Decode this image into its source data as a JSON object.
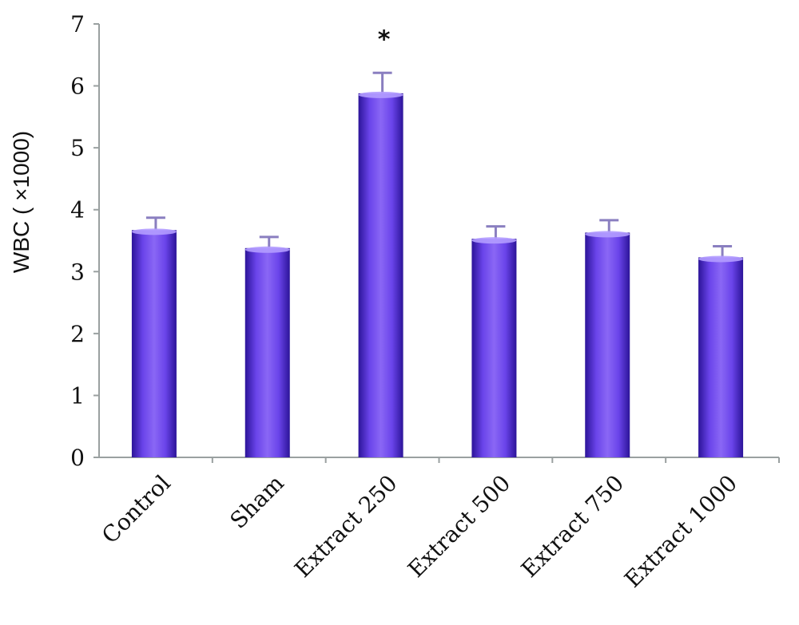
{
  "chart_data": {
    "type": "bar",
    "title": "",
    "xlabel": "",
    "ylabel": "WBC ( ×1000)",
    "ylim": [
      0,
      7
    ],
    "yticks": [
      "0",
      "1",
      "2",
      "3",
      "4",
      "5",
      "6",
      "7"
    ],
    "categories": [
      "Control",
      "Sham",
      "Extract 250",
      "Extract 500",
      "Extract 750",
      "Extract 1000"
    ],
    "values": [
      3.67,
      3.38,
      5.88,
      3.53,
      3.63,
      3.23
    ],
    "error_upper": [
      0.2,
      0.18,
      0.33,
      0.2,
      0.2,
      0.18
    ],
    "annotations": [
      "",
      "",
      "*",
      "",
      "",
      ""
    ],
    "grid": false,
    "bar_color": "#6a3fe3"
  }
}
